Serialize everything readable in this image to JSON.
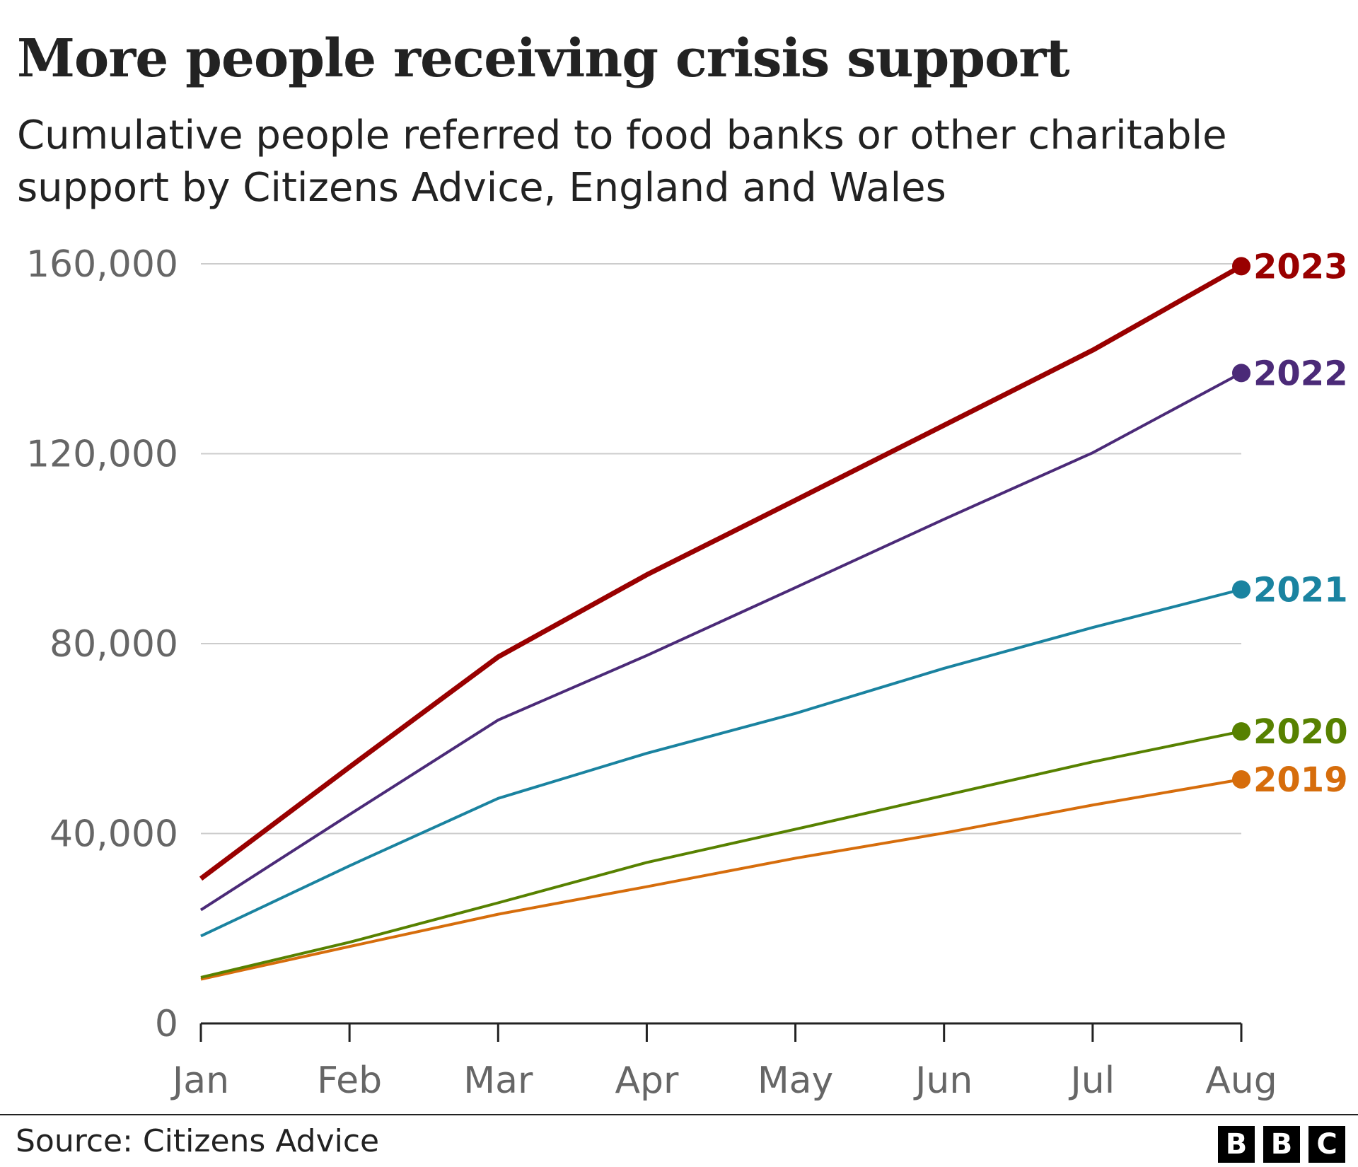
{
  "chart_data": {
    "type": "line",
    "title": "More people receiving crisis support",
    "subtitle": "Cumulative people referred to food banks or other charitable support by Citizens Advice, England and Wales",
    "xlabel": "",
    "ylabel": "",
    "categories": [
      "Jan",
      "Feb",
      "Mar",
      "Apr",
      "May",
      "Jun",
      "Jul",
      "Aug"
    ],
    "ylim": [
      0,
      160000
    ],
    "yticks": [
      0,
      40000,
      80000,
      120000,
      160000
    ],
    "ytick_labels": [
      "0",
      "40,000",
      "80,000",
      "120,000",
      "160,000"
    ],
    "grid": true,
    "legend": "direct labels at line ends (right)",
    "series": [
      {
        "name": "2019",
        "color": "#d66d0c",
        "width": 4,
        "values": [
          9300,
          16200,
          23000,
          28800,
          34800,
          40100,
          46000,
          51400
        ]
      },
      {
        "name": "2020",
        "color": "#578100",
        "width": 4,
        "values": [
          9700,
          17100,
          25400,
          33900,
          40900,
          48000,
          55100,
          61500
        ]
      },
      {
        "name": "2021",
        "color": "#1a83a0",
        "width": 4,
        "values": [
          18400,
          33200,
          47400,
          56900,
          65300,
          74800,
          83400,
          91400
        ]
      },
      {
        "name": "2022",
        "color": "#4b2a78",
        "width": 4,
        "values": [
          23900,
          44000,
          63900,
          77500,
          91800,
          106200,
          120200,
          137000
        ]
      },
      {
        "name": "2023",
        "color": "#990000",
        "width": 7,
        "values": [
          30500,
          54000,
          77200,
          94500,
          110200,
          126000,
          141800,
          159500
        ]
      }
    ]
  },
  "footer": {
    "source": "Source: Citizens Advice",
    "logo": [
      "B",
      "B",
      "C"
    ]
  }
}
